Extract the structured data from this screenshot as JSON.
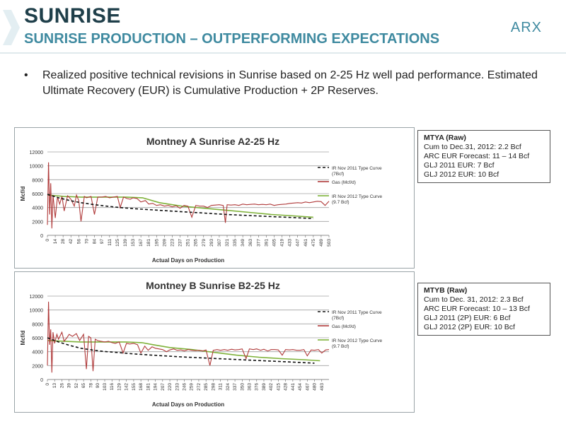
{
  "header": {
    "title": "SUNRISE",
    "subtitle": "SUNRISE PRODUCTION – OUTPERFORMING EXPECTATIONS",
    "logo": "ARX"
  },
  "bullet": {
    "marker": "•",
    "text": "Realized positive technical revisions in Sunrise based on 2-25 Hz well pad performance.  Estimated Ultimate Recovery (EUR) is Cumulative Production + 2P Reserves."
  },
  "info_boxes": [
    {
      "heading": "MTYA (Raw)",
      "lines": [
        "Cum to Dec.31, 2012: 2.2 Bcf",
        "ARC EUR Forecast: 11 – 14 Bcf",
        "GLJ 2011 EUR:  7 Bcf",
        "GLJ 2012 EUR:  10 Bcf"
      ]
    },
    {
      "heading": "MTYB (Raw)",
      "lines": [
        "Cum to Dec. 31, 2012: 2.3 Bcf",
        "ARC EUR Forecast: 10 – 13 Bcf",
        "GLJ 2011 (2P) EUR:  6 Bcf",
        "GLJ 2012 (2P) EUR:  10 Bcf"
      ]
    }
  ],
  "colors": {
    "gas": "#b03a3a",
    "type2011": "#111111",
    "type2012": "#7fb23a",
    "grid": "#a0a0a0",
    "title_dark": "#1f3f4a",
    "accent": "#3f8aa0"
  },
  "chart_data": [
    {
      "type": "line",
      "title": "Montney A  Sunrise A2-25 Hz",
      "xlabel": "Actual Days on Production",
      "ylabel": "Mcf/d",
      "ylim": [
        0,
        12000
      ],
      "xlim": [
        0,
        503
      ],
      "yticks": [
        "0",
        "2000",
        "4000",
        "6000",
        "8000",
        "10000",
        "12000"
      ],
      "xticks": [
        "0",
        "14",
        "28",
        "42",
        "56",
        "70",
        "84",
        "97",
        "111",
        "125",
        "139",
        "153",
        "167",
        "181",
        "195",
        "209",
        "223",
        "237",
        "251",
        "265",
        "279",
        "293",
        "307",
        "321",
        "335",
        "349",
        "363",
        "377",
        "391",
        "405",
        "419",
        "433",
        "447",
        "461",
        "475",
        "489",
        "503"
      ],
      "grid": "horizontal",
      "legend_position": "right",
      "series": [
        {
          "name": "IR Nov 2011 Type Curve (7Bcf)",
          "style": "dashed",
          "x": [
            0,
            20,
            40,
            60,
            80,
            100,
            130,
            160,
            200,
            240,
            280,
            320,
            360,
            400,
            440,
            475
          ],
          "y": [
            5900,
            5400,
            5000,
            4700,
            4450,
            4250,
            4000,
            3800,
            3600,
            3400,
            3200,
            3000,
            2850,
            2700,
            2550,
            2400
          ]
        },
        {
          "name": "Gas (Mcf/d)",
          "style": "solid",
          "x": [
            0,
            2,
            4,
            6,
            8,
            10,
            14,
            18,
            22,
            26,
            30,
            36,
            42,
            48,
            52,
            56,
            60,
            66,
            70,
            78,
            84,
            90,
            97,
            104,
            111,
            118,
            125,
            130,
            136,
            142,
            148,
            153,
            160,
            167,
            175,
            181,
            188,
            195,
            202,
            209,
            216,
            223,
            230,
            237,
            244,
            251,
            258,
            265,
            272,
            279,
            286,
            293,
            300,
            307,
            314,
            318,
            321,
            328,
            335,
            342,
            349,
            356,
            363,
            370,
            377,
            384,
            391,
            398,
            405,
            412,
            419,
            426,
            433,
            440,
            447,
            454,
            461,
            468,
            475,
            482,
            489,
            496,
            503
          ],
          "y": [
            1500,
            10500,
            3000,
            7500,
            1000,
            5800,
            2500,
            5500,
            4500,
            5600,
            3500,
            5700,
            5200,
            4200,
            5800,
            5000,
            2000,
            5600,
            5400,
            5600,
            3000,
            5500,
            5500,
            5600,
            5400,
            5500,
            5600,
            4000,
            5500,
            5300,
            5200,
            5400,
            5300,
            4800,
            5000,
            4500,
            4600,
            4300,
            4400,
            4200,
            4300,
            4100,
            4250,
            3900,
            4300,
            4200,
            2600,
            4300,
            4200,
            4200,
            4000,
            4300,
            4350,
            4400,
            4300,
            1800,
            4400,
            4350,
            4400,
            4300,
            4500,
            4400,
            4450,
            4500,
            4400,
            4450,
            4400,
            4500,
            4300,
            4400,
            4450,
            4500,
            4600,
            4650,
            4700,
            4650,
            4800,
            4700,
            4800,
            4900,
            4850,
            4300,
            4900
          ]
        },
        {
          "name": "IR Nov 2012 Type Curve (9.7 Bcf)",
          "style": "solid",
          "x": [
            0,
            30,
            60,
            100,
            140,
            170,
            200,
            240,
            280,
            320,
            360,
            400,
            440,
            475
          ],
          "y": [
            5800,
            5600,
            5500,
            5500,
            5500,
            5400,
            4700,
            4200,
            3900,
            3600,
            3300,
            3000,
            2800,
            2600
          ]
        }
      ]
    },
    {
      "type": "line",
      "title": "Montney B  Sunrise B2-25 Hz",
      "xlabel": "Actual Days on Production",
      "ylabel": "Mcf/d",
      "ylim": [
        0,
        12000
      ],
      "xlim": [
        0,
        506
      ],
      "yticks": [
        "0",
        "2000",
        "4000",
        "6000",
        "8000",
        "10000",
        "12000"
      ],
      "xticks": [
        "0",
        "13",
        "26",
        "39",
        "52",
        "65",
        "78",
        "90",
        "103",
        "116",
        "129",
        "142",
        "155",
        "168",
        "181",
        "194",
        "207",
        "220",
        "233",
        "246",
        "259",
        "272",
        "285",
        "298",
        "311",
        "324",
        "337",
        "350",
        "363",
        "376",
        "389",
        "402",
        "415",
        "428",
        "441",
        "454",
        "467",
        "480",
        "493"
      ],
      "grid": "horizontal",
      "legend_position": "right",
      "series": [
        {
          "name": "IR Nov 2011 Type Curve (7Bcf)",
          "style": "dashed",
          "x": [
            0,
            20,
            40,
            60,
            80,
            100,
            130,
            160,
            200,
            240,
            280,
            320,
            360,
            400,
            440,
            480
          ],
          "y": [
            6000,
            5400,
            4900,
            4500,
            4250,
            4050,
            3850,
            3650,
            3450,
            3250,
            3100,
            2950,
            2800,
            2650,
            2500,
            2350
          ]
        },
        {
          "name": "Gas (Mcf/d)",
          "style": "solid",
          "x": [
            0,
            2,
            4,
            6,
            8,
            10,
            13,
            17,
            20,
            26,
            30,
            35,
            39,
            45,
            52,
            58,
            65,
            70,
            74,
            78,
            82,
            86,
            90,
            96,
            103,
            110,
            116,
            122,
            129,
            136,
            142,
            148,
            155,
            162,
            168,
            175,
            181,
            188,
            194,
            200,
            207,
            214,
            220,
            227,
            233,
            240,
            246,
            253,
            259,
            266,
            272,
            279,
            285,
            292,
            298,
            305,
            311,
            318,
            324,
            331,
            337,
            344,
            350,
            357,
            363,
            370,
            376,
            383,
            389,
            396,
            402,
            409,
            415,
            422,
            428,
            435,
            441,
            448,
            454,
            461,
            467,
            474,
            480,
            487,
            493,
            500,
            506
          ],
          "y": [
            2000,
            11200,
            5000,
            7200,
            1000,
            6800,
            5200,
            6500,
            5800,
            6800,
            5500,
            6000,
            6500,
            6200,
            6600,
            5600,
            6500,
            1500,
            6200,
            6000,
            1200,
            5800,
            5600,
            5500,
            5400,
            5500,
            5300,
            5200,
            5400,
            3800,
            5200,
            5100,
            5200,
            5000,
            3800,
            4800,
            4200,
            4700,
            4500,
            4400,
            4300,
            4000,
            4250,
            4400,
            4200,
            4250,
            4100,
            4300,
            4200,
            4150,
            4200,
            4100,
            4250,
            2000,
            4200,
            4300,
            4200,
            4300,
            4200,
            4350,
            4250,
            4300,
            4400,
            3000,
            4400,
            4300,
            4400,
            4200,
            4350,
            4100,
            4300,
            4300,
            4250,
            3500,
            4300,
            4250,
            4300,
            4200,
            4200,
            4300,
            3400,
            4250,
            4200,
            4300,
            3800,
            4250,
            4300
          ]
        },
        {
          "name": "IR Nov 2012 Type Curve (9.7 Bcf)",
          "style": "solid",
          "x": [
            0,
            30,
            60,
            100,
            140,
            170,
            190,
            220,
            260,
            300,
            340,
            380,
            420,
            460,
            490
          ],
          "y": [
            5600,
            5500,
            5400,
            5400,
            5400,
            5300,
            5000,
            4600,
            4300,
            3900,
            3500,
            3200,
            3000,
            2850,
            2700
          ]
        }
      ]
    }
  ]
}
